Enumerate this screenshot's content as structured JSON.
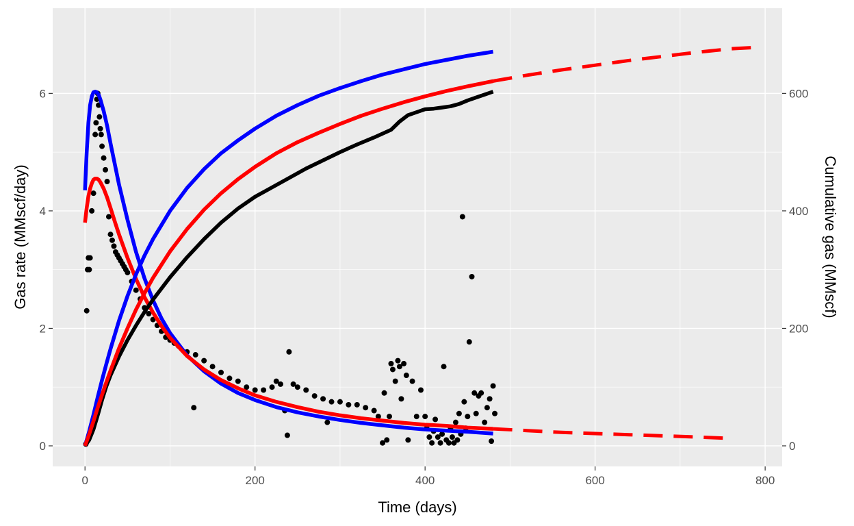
{
  "chart_data": {
    "type": "line",
    "title": "",
    "xlabel": "Time (days)",
    "ylabel": "Gas rate (MMscf/day)",
    "y2label": "Cumulative gas (MMscf)",
    "xlim": [
      -38,
      820
    ],
    "ylim": [
      -0.35,
      7.45
    ],
    "y2lim": [
      -35,
      745
    ],
    "xticks": [
      0,
      200,
      400,
      600,
      800
    ],
    "yticks": [
      0,
      2,
      4,
      6
    ],
    "y2ticks": [
      0,
      200,
      400,
      600
    ],
    "grid": true,
    "legend": "none",
    "colors": {
      "panel": "#ebebeb",
      "grid": "#ffffff",
      "points": "#000000",
      "fit_a": "#0000ff",
      "fit_b": "#ff0000"
    },
    "series": [
      {
        "kind": "scatter",
        "axis": "left",
        "color": "#000000",
        "x": [
          1,
          2,
          3,
          4,
          5,
          6,
          8,
          10,
          12,
          13,
          14,
          15,
          16,
          17,
          18,
          19,
          20,
          22,
          24,
          26,
          28,
          30,
          32,
          34,
          36,
          38,
          40,
          42,
          44,
          46,
          48,
          50,
          55,
          60,
          65,
          70,
          75,
          80,
          85,
          90,
          95,
          100,
          105,
          110,
          120,
          128,
          130,
          140,
          150,
          160,
          170,
          180,
          190,
          200,
          210,
          220,
          225,
          230,
          235,
          238,
          240,
          245,
          250,
          260,
          270,
          280,
          285,
          290,
          300,
          310,
          320,
          330,
          340,
          345,
          350,
          352,
          355,
          358,
          360,
          362,
          365,
          368,
          370,
          372,
          375,
          378,
          380,
          385,
          390,
          395,
          400,
          402,
          405,
          408,
          410,
          412,
          415,
          418,
          420,
          422,
          425,
          428,
          430,
          432,
          434,
          436,
          438,
          440,
          442,
          444,
          446,
          448,
          450,
          452,
          455,
          458,
          460,
          463,
          466,
          470,
          473,
          476,
          478,
          480,
          482
        ],
        "y": [
          0.03,
          2.3,
          3.0,
          3.2,
          3.0,
          3.2,
          4.0,
          4.3,
          5.3,
          5.5,
          5.9,
          6.0,
          5.8,
          5.6,
          5.4,
          5.3,
          5.1,
          4.9,
          4.7,
          4.5,
          3.9,
          3.6,
          3.5,
          3.4,
          3.3,
          3.25,
          3.2,
          3.15,
          3.1,
          3.05,
          3.0,
          2.95,
          2.8,
          2.65,
          2.5,
          2.35,
          2.25,
          2.15,
          2.05,
          1.95,
          1.85,
          1.8,
          1.75,
          1.7,
          1.6,
          0.65,
          1.55,
          1.45,
          1.35,
          1.25,
          1.15,
          1.1,
          1.0,
          0.95,
          0.95,
          1.0,
          1.1,
          1.05,
          0.6,
          0.18,
          1.6,
          1.05,
          1.0,
          0.95,
          0.85,
          0.8,
          0.4,
          0.75,
          0.75,
          0.7,
          0.7,
          0.65,
          0.6,
          0.5,
          0.05,
          0.9,
          0.1,
          0.5,
          1.4,
          1.3,
          1.1,
          1.45,
          1.35,
          0.8,
          1.4,
          1.2,
          0.1,
          1.1,
          0.5,
          0.95,
          0.5,
          0.3,
          0.15,
          0.05,
          0.25,
          0.45,
          0.15,
          0.05,
          0.2,
          1.35,
          0.1,
          0.05,
          0.3,
          0.15,
          0.05,
          0.4,
          0.1,
          0.55,
          0.2,
          3.9,
          0.75,
          0.3,
          0.5,
          1.77,
          2.88,
          0.9,
          0.55,
          0.85,
          0.9,
          0.4,
          0.65,
          0.8,
          0.08,
          1.02,
          0.55
        ]
      },
      {
        "kind": "line",
        "axis": "left",
        "color": "#0000ff",
        "x": [
          0,
          2,
          4,
          6,
          8,
          10,
          12,
          14,
          16,
          18,
          22,
          26,
          30,
          35,
          40,
          50,
          60,
          70,
          80,
          90,
          100,
          120,
          140,
          160,
          180,
          200,
          225,
          250,
          275,
          300,
          325,
          350,
          375,
          400,
          425,
          450,
          480
        ],
        "y": [
          4.35,
          5.0,
          5.5,
          5.8,
          5.95,
          6.02,
          6.03,
          6.02,
          5.98,
          5.9,
          5.7,
          5.45,
          5.15,
          4.8,
          4.45,
          3.85,
          3.3,
          2.85,
          2.48,
          2.17,
          1.92,
          1.54,
          1.27,
          1.06,
          0.9,
          0.78,
          0.66,
          0.57,
          0.5,
          0.44,
          0.39,
          0.35,
          0.31,
          0.28,
          0.26,
          0.24,
          0.21
        ]
      },
      {
        "kind": "line",
        "axis": "left",
        "color": "#ff0000",
        "x": [
          0,
          2,
          4,
          6,
          8,
          10,
          12,
          14,
          16,
          18,
          22,
          26,
          30,
          35,
          40,
          50,
          60,
          70,
          80,
          90,
          100,
          120,
          140,
          160,
          180,
          200,
          225,
          250,
          275,
          300,
          325,
          350,
          375,
          400,
          425,
          450,
          480
        ],
        "y": [
          3.8,
          4.05,
          4.25,
          4.38,
          4.47,
          4.53,
          4.55,
          4.55,
          4.53,
          4.49,
          4.38,
          4.23,
          4.05,
          3.82,
          3.6,
          3.2,
          2.84,
          2.53,
          2.27,
          2.04,
          1.84,
          1.53,
          1.3,
          1.12,
          0.98,
          0.86,
          0.75,
          0.66,
          0.58,
          0.52,
          0.47,
          0.43,
          0.39,
          0.36,
          0.34,
          0.31,
          0.29
        ]
      },
      {
        "kind": "line",
        "axis": "left",
        "color": "#ff0000",
        "dashed": true,
        "x": [
          480,
          520,
          560,
          600,
          640,
          680,
          720,
          755
        ],
        "y": [
          0.29,
          0.26,
          0.23,
          0.21,
          0.19,
          0.17,
          0.15,
          0.13
        ]
      },
      {
        "kind": "line",
        "axis": "right",
        "color": "#000000",
        "x": [
          0,
          5,
          10,
          15,
          20,
          25,
          30,
          40,
          50,
          60,
          70,
          80,
          100,
          120,
          140,
          160,
          180,
          200,
          220,
          240,
          260,
          280,
          300,
          320,
          340,
          360,
          370,
          380,
          390,
          400,
          410,
          420,
          430,
          440,
          450,
          460,
          470,
          480
        ],
        "y": [
          0,
          10,
          28,
          52,
          78,
          101,
          120,
          152,
          180,
          205,
          228,
          249,
          287,
          321,
          352,
          380,
          404,
          424,
          440,
          456,
          472,
          486,
          500,
          513,
          525,
          538,
          552,
          563,
          568,
          573,
          574,
          576,
          578,
          582,
          588,
          593,
          598,
          603
        ]
      },
      {
        "kind": "line",
        "axis": "right",
        "color": "#0000ff",
        "x": [
          0,
          5,
          10,
          15,
          20,
          25,
          30,
          40,
          50,
          60,
          70,
          80,
          100,
          120,
          140,
          160,
          180,
          200,
          225,
          250,
          275,
          300,
          325,
          350,
          375,
          400,
          425,
          450,
          480
        ],
        "y": [
          0,
          25,
          53,
          83,
          112,
          139,
          165,
          213,
          255,
          292,
          324,
          352,
          400,
          439,
          471,
          498,
          520,
          540,
          562,
          580,
          596,
          609,
          621,
          632,
          641,
          650,
          657,
          664,
          671
        ]
      },
      {
        "kind": "line",
        "axis": "right",
        "color": "#ff0000",
        "x": [
          0,
          5,
          10,
          15,
          20,
          25,
          30,
          40,
          50,
          60,
          70,
          80,
          100,
          120,
          140,
          160,
          180,
          200,
          225,
          250,
          275,
          300,
          325,
          350,
          375,
          400,
          425,
          450,
          480
        ],
        "y": [
          0,
          20,
          42,
          65,
          87,
          108,
          128,
          166,
          200,
          232,
          260,
          286,
          331,
          369,
          402,
          430,
          454,
          475,
          498,
          517,
          533,
          548,
          562,
          574,
          585,
          595,
          604,
          612,
          621
        ]
      },
      {
        "kind": "line",
        "axis": "right",
        "color": "#ff0000",
        "dashed": true,
        "x": [
          480,
          520,
          560,
          600,
          640,
          680,
          720,
          760,
          785
        ],
        "y": [
          621,
          631,
          640,
          648,
          656,
          663,
          670,
          676,
          678
        ]
      }
    ]
  }
}
